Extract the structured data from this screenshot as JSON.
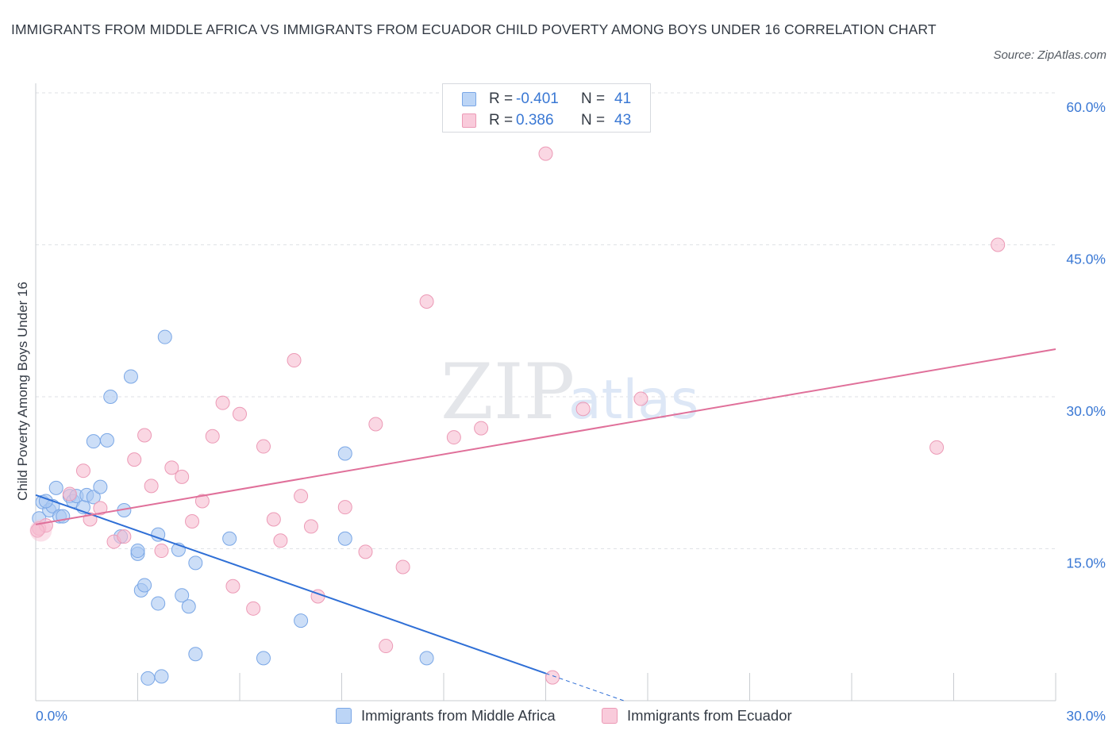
{
  "header": {
    "title": "IMMIGRANTS FROM MIDDLE AFRICA VS IMMIGRANTS FROM ECUADOR CHILD POVERTY AMONG BOYS UNDER 16 CORRELATION CHART",
    "source": "Source: ZipAtlas.com"
  },
  "watermark": {
    "zip": "ZIP",
    "atlas": "atlas"
  },
  "colors": {
    "blue_fill": "#aac8f2",
    "blue_stroke": "#7aa7e6",
    "blue_line": "#2f6fd6",
    "pink_fill": "#f6bcd0",
    "pink_stroke": "#ec9ab6",
    "pink_line": "#e0709a",
    "tick_label": "#3a78d4",
    "grid": "#dfe2e6"
  },
  "legend": {
    "rows": [
      {
        "r_label": "R =",
        "r_value": "-0.401",
        "n_label": "N =",
        "n_value": "41"
      },
      {
        "r_label": "R =",
        "r_value": "0.386",
        "n_label": "N =",
        "n_value": "43"
      }
    ]
  },
  "bottom_legend": {
    "series1": "Immigrants from Middle Africa",
    "series2": "Immigrants from Ecuador"
  },
  "chart_data": {
    "type": "scatter",
    "title": "IMMIGRANTS FROM MIDDLE AFRICA VS IMMIGRANTS FROM ECUADOR CHILD POVERTY AMONG BOYS UNDER 16 CORRELATION CHART",
    "xlabel": "",
    "ylabel": "Child Poverty Among Boys Under 16",
    "xlim": [
      0,
      30
    ],
    "ylim": [
      0,
      60
    ],
    "x_tick_labels": [
      "0.0%",
      "30.0%"
    ],
    "y_ticks": [
      15,
      30,
      45,
      60
    ],
    "y_tick_labels": [
      "15.0%",
      "30.0%",
      "45.0%",
      "60.0%"
    ],
    "grid": true,
    "legend_position": "top-center",
    "series": [
      {
        "name": "Immigrants from Middle Africa",
        "color": "#aac8f2",
        "points": [
          [
            0.1,
            18.0
          ],
          [
            0.2,
            19.6
          ],
          [
            0.4,
            18.8
          ],
          [
            0.5,
            19.2
          ],
          [
            0.6,
            21.0
          ],
          [
            0.7,
            18.2
          ],
          [
            0.8,
            18.2
          ],
          [
            1.0,
            20.2
          ],
          [
            1.1,
            19.7
          ],
          [
            1.2,
            20.2
          ],
          [
            1.4,
            19.1
          ],
          [
            1.5,
            20.3
          ],
          [
            1.7,
            20.1
          ],
          [
            1.7,
            25.6
          ],
          [
            1.9,
            21.1
          ],
          [
            2.1,
            25.7
          ],
          [
            2.2,
            30.0
          ],
          [
            2.6,
            18.8
          ],
          [
            2.8,
            32.0
          ],
          [
            3.0,
            14.5
          ],
          [
            2.5,
            16.2
          ],
          [
            3.0,
            14.8
          ],
          [
            3.1,
            10.9
          ],
          [
            3.2,
            11.4
          ],
          [
            3.3,
            2.2
          ],
          [
            3.6,
            9.6
          ],
          [
            3.6,
            16.4
          ],
          [
            3.7,
            2.4
          ],
          [
            3.8,
            35.9
          ],
          [
            4.2,
            14.9
          ],
          [
            4.3,
            10.4
          ],
          [
            4.5,
            9.3
          ],
          [
            4.7,
            13.6
          ],
          [
            4.7,
            4.6
          ],
          [
            5.7,
            16.0
          ],
          [
            6.7,
            4.2
          ],
          [
            7.8,
            7.9
          ],
          [
            9.1,
            24.4
          ],
          [
            9.1,
            16.0
          ],
          [
            11.5,
            4.2
          ],
          [
            0.3,
            19.7
          ]
        ]
      },
      {
        "name": "Immigrants from Ecuador",
        "color": "#f6bcd0",
        "points": [
          [
            0.1,
            17.0
          ],
          [
            0.3,
            17.3
          ],
          [
            1.0,
            20.4
          ],
          [
            1.4,
            22.7
          ],
          [
            1.6,
            17.9
          ],
          [
            1.9,
            19.0
          ],
          [
            2.3,
            15.7
          ],
          [
            2.6,
            16.2
          ],
          [
            2.9,
            23.8
          ],
          [
            3.2,
            26.2
          ],
          [
            3.4,
            21.2
          ],
          [
            3.7,
            14.8
          ],
          [
            4.0,
            23.0
          ],
          [
            4.3,
            22.1
          ],
          [
            4.6,
            17.7
          ],
          [
            4.9,
            19.7
          ],
          [
            5.2,
            26.1
          ],
          [
            5.5,
            29.4
          ],
          [
            5.8,
            11.3
          ],
          [
            6.0,
            28.3
          ],
          [
            6.4,
            9.1
          ],
          [
            6.7,
            25.1
          ],
          [
            7.0,
            17.9
          ],
          [
            7.2,
            15.8
          ],
          [
            7.6,
            33.6
          ],
          [
            7.8,
            20.2
          ],
          [
            8.1,
            17.2
          ],
          [
            8.3,
            10.3
          ],
          [
            9.1,
            19.1
          ],
          [
            9.7,
            14.7
          ],
          [
            10.0,
            27.3
          ],
          [
            10.3,
            5.4
          ],
          [
            10.8,
            13.2
          ],
          [
            11.5,
            39.4
          ],
          [
            12.3,
            26.0
          ],
          [
            13.1,
            26.9
          ],
          [
            15.0,
            54.0
          ],
          [
            15.2,
            2.3
          ],
          [
            16.1,
            28.8
          ],
          [
            17.8,
            29.8
          ],
          [
            26.5,
            25.0
          ],
          [
            28.3,
            45.0
          ],
          [
            0.05,
            16.8
          ]
        ]
      }
    ],
    "trendlines": [
      {
        "series": "Immigrants from Middle Africa",
        "x0": 0,
        "y0": 20.3,
        "x1": 15.0,
        "y1": 2.7,
        "dashed_to": [
          17.3,
          0.0
        ]
      },
      {
        "series": "Immigrants from Ecuador",
        "x0": 0,
        "y0": 17.4,
        "x1": 30.0,
        "y1": 34.7
      }
    ]
  }
}
